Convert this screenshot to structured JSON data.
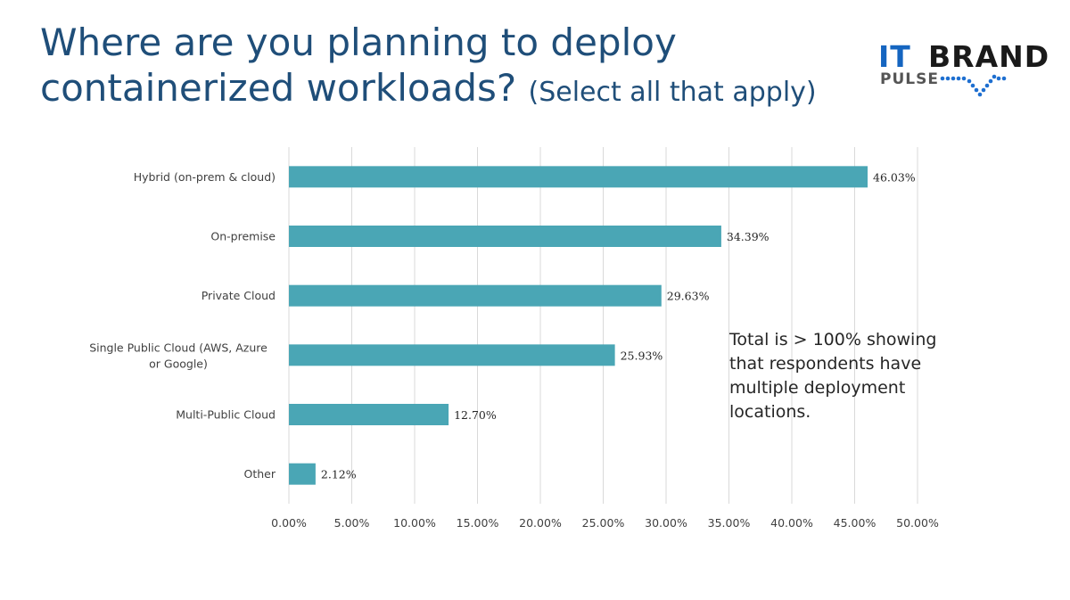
{
  "title": {
    "main": "Where are you planning to deploy containerized workloads?",
    "sub": "(Select all that apply)"
  },
  "logo": {
    "part1": "IT",
    "part2": "BRAND",
    "part3": "PULSE"
  },
  "note": "Total is > 100% showing that respondents have multiple deployment locations.",
  "colors": {
    "bar": "#4aa6b5",
    "title": "#1f4e79",
    "grid": "#d9d9d9"
  },
  "chart_data": {
    "type": "bar",
    "orientation": "horizontal",
    "categories": [
      "Hybrid (on-prem & cloud)",
      "On-premise",
      "Private Cloud",
      "Single Public Cloud (AWS, Azure or Google)",
      "Multi-Public Cloud",
      "Other"
    ],
    "values": [
      46.03,
      34.39,
      29.63,
      25.93,
      12.7,
      2.12
    ],
    "data_labels": [
      "46.03%",
      "34.39%",
      "29.63%",
      "25.93%",
      "12.70%",
      "2.12%"
    ],
    "xlim": [
      0,
      50
    ],
    "xticks": [
      0,
      5,
      10,
      15,
      20,
      25,
      30,
      35,
      40,
      45,
      50
    ],
    "xtick_labels": [
      "0.00%",
      "5.00%",
      "10.00%",
      "15.00%",
      "20.00%",
      "25.00%",
      "30.00%",
      "35.00%",
      "40.00%",
      "45.00%",
      "50.00%"
    ],
    "grid": true,
    "legend": false
  }
}
